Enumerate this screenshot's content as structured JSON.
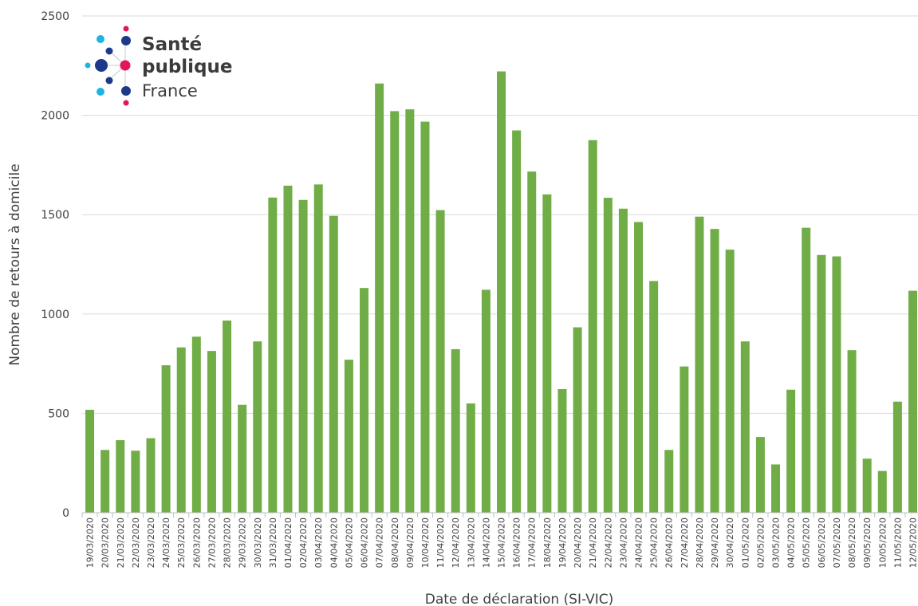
{
  "logo": {
    "line1": "Santé",
    "line2": "publique",
    "line3": "France",
    "colors": {
      "navy": "#1d3a8a",
      "cyan": "#1fb3e5",
      "magenta": "#e3165b"
    }
  },
  "chart_data": {
    "type": "bar",
    "title": "",
    "xlabel": "Date de déclaration (SI-VIC)",
    "ylabel": "Nombre de retours à domicile",
    "ylim": [
      0,
      2500
    ],
    "yticks": [
      0,
      500,
      1000,
      1500,
      2000,
      2500
    ],
    "grid": true,
    "bar_color": "#70ad47",
    "categories": [
      "19/03/2020",
      "20/03/2020",
      "21/03/2020",
      "22/03/2020",
      "23/03/2020",
      "24/03/2020",
      "25/03/2020",
      "26/03/2020",
      "27/03/2020",
      "28/03/2020",
      "29/03/2020",
      "30/03/2020",
      "31/03/2020",
      "01/04/2020",
      "02/04/2020",
      "03/04/2020",
      "04/04/2020",
      "05/04/2020",
      "06/04/2020",
      "07/04/2020",
      "08/04/2020",
      "09/04/2020",
      "10/04/2020",
      "11/04/2020",
      "12/04/2020",
      "13/04/2020",
      "14/04/2020",
      "15/04/2020",
      "16/04/2020",
      "17/04/2020",
      "18/04/2020",
      "19/04/2020",
      "20/04/2020",
      "21/04/2020",
      "22/04/2020",
      "23/04/2020",
      "24/04/2020",
      "25/04/2020",
      "26/04/2020",
      "27/04/2020",
      "28/04/2020",
      "29/04/2020",
      "30/04/2020",
      "01/05/2020",
      "02/05/2020",
      "03/05/2020",
      "04/05/2020",
      "05/05/2020",
      "06/05/2020",
      "07/05/2020",
      "08/05/2020",
      "09/05/2020",
      "10/05/2020",
      "11/05/2020",
      "12/05/2020"
    ],
    "values": [
      518,
      316,
      365,
      312,
      375,
      742,
      832,
      886,
      814,
      967,
      543,
      862,
      1586,
      1646,
      1574,
      1652,
      1494,
      770,
      1131,
      2160,
      2021,
      2030,
      1968,
      1523,
      823,
      550,
      1122,
      2221,
      1924,
      1717,
      1602,
      622,
      933,
      1875,
      1585,
      1530,
      1463,
      1166,
      316,
      736,
      1490,
      1428,
      1324,
      862,
      381,
      243,
      619,
      1434,
      1297,
      1290,
      818,
      272,
      210,
      559,
      1117
    ]
  }
}
